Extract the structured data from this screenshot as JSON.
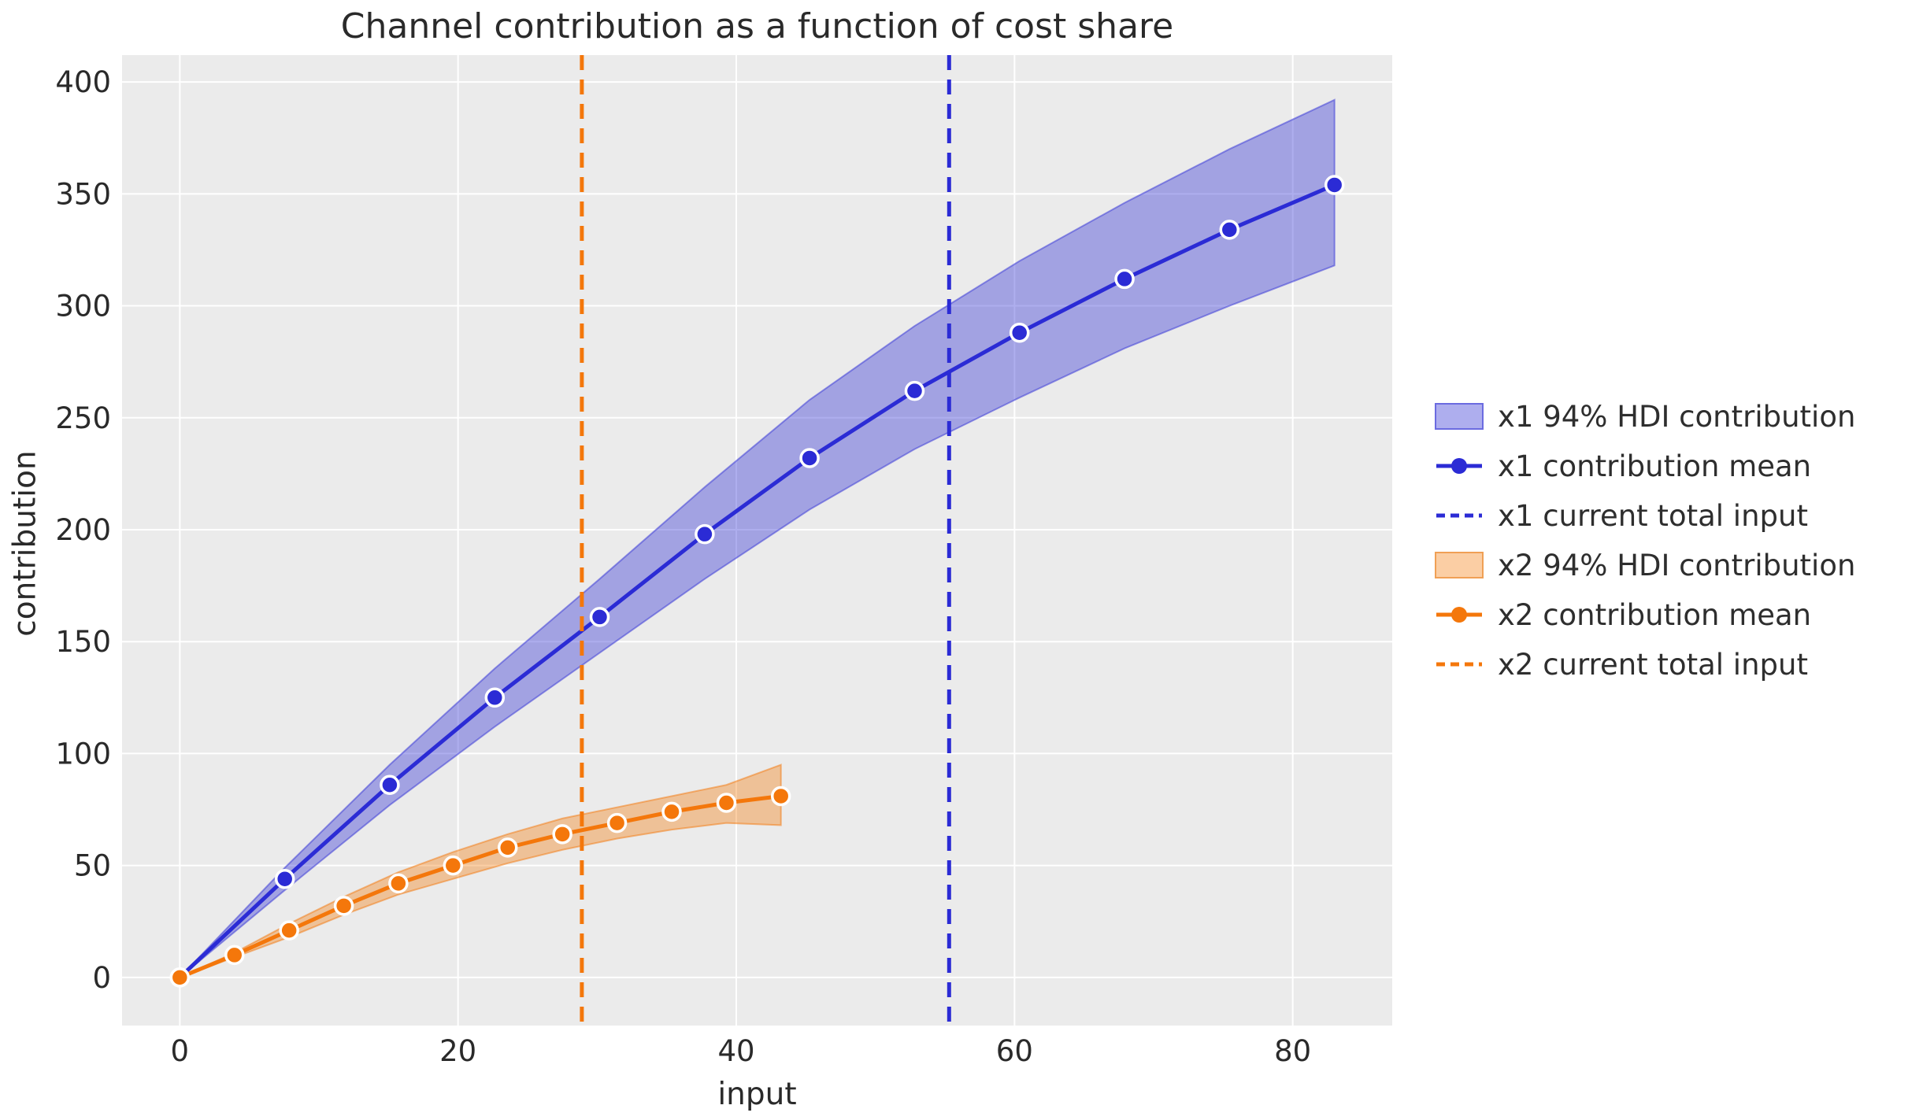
{
  "title": "Channel contribution as a function of cost share",
  "axes": {
    "xlabel": "input",
    "ylabel": "contribution"
  },
  "colors": {
    "page_bg": "#ffffff",
    "plot_bg": "#ebebeb",
    "gridline": "#ffffff",
    "text": "#2a2a2a",
    "x1_blue": "#2b2bd5",
    "x1_band_fill": "rgba(62,62,215,0.42)",
    "x1_band_edge": "rgba(62,62,215,0.55)",
    "x2_orange": "#f4770b",
    "x2_band_fill": "rgba(244,125,15,0.38)",
    "x2_band_edge": "rgba(244,119,11,0.50)",
    "marker_edge": "#ffffff"
  },
  "chart_data": {
    "type": "line",
    "title": "Channel contribution as a function of cost share",
    "xlabel": "input",
    "ylabel": "contribution",
    "xlim": [
      -4.15,
      87.15
    ],
    "ylim": [
      -21.5,
      412
    ],
    "xticks": [
      0,
      20,
      40,
      60,
      80
    ],
    "yticks": [
      0,
      50,
      100,
      150,
      200,
      250,
      300,
      350,
      400
    ],
    "grid": true,
    "legend_position": "outside-right",
    "series": [
      {
        "name": "x1 94% HDI contribution",
        "type": "band",
        "color": "#2b2bd5",
        "fill": "rgba(62,62,215,0.42)",
        "edge": "rgba(62,62,215,0.55)",
        "x": [
          0,
          7.55,
          15.09,
          22.64,
          30.18,
          37.73,
          45.27,
          52.82,
          60.36,
          67.91,
          75.45,
          83
        ],
        "low": [
          0,
          39,
          77,
          112,
          145,
          178,
          209,
          236,
          259,
          281,
          300,
          318
        ],
        "high": [
          0,
          49,
          95,
          138,
          178,
          219,
          258,
          291,
          320,
          346,
          370,
          392
        ]
      },
      {
        "name": "x1 contribution mean",
        "type": "line-markers",
        "color": "#2b2bd5",
        "x": [
          0,
          7.55,
          15.09,
          22.64,
          30.18,
          37.73,
          45.27,
          52.82,
          60.36,
          67.91,
          75.45,
          83
        ],
        "y": [
          0,
          44,
          86,
          125,
          161,
          198,
          232,
          262,
          288,
          312,
          334,
          354
        ]
      },
      {
        "name": "x1 current total input",
        "type": "vline",
        "color": "#2b2bd5",
        "x": 55.3
      },
      {
        "name": "x2 94% HDI contribution",
        "type": "band",
        "color": "#f4770b",
        "fill": "rgba(244,125,15,0.38)",
        "edge": "rgba(244,119,11,0.50)",
        "x": [
          0,
          3.93,
          7.86,
          11.79,
          15.71,
          19.64,
          23.57,
          27.5,
          31.43,
          35.36,
          39.29,
          43.21
        ],
        "low": [
          0,
          9,
          18,
          28,
          37,
          44,
          51,
          57,
          62,
          66,
          69,
          68
        ],
        "high": [
          0,
          11,
          24,
          36,
          47,
          56,
          64,
          71,
          76,
          81,
          86,
          95
        ]
      },
      {
        "name": "x2 contribution mean",
        "type": "line-markers",
        "color": "#f4770b",
        "x": [
          0,
          3.93,
          7.86,
          11.79,
          15.71,
          19.64,
          23.57,
          27.5,
          31.43,
          35.36,
          39.29,
          43.21
        ],
        "y": [
          0,
          10,
          21,
          32,
          42,
          50,
          58,
          64,
          69,
          74,
          78,
          81
        ]
      },
      {
        "name": "x2 current total input",
        "type": "vline",
        "color": "#f4770b",
        "x": 28.9
      }
    ]
  },
  "legend": {
    "items": [
      {
        "label": "x1 94% HDI contribution",
        "swatch": "patch",
        "color": "#2b2bd5",
        "fill": "rgba(62,62,215,0.42)",
        "edge": "#6b6be0"
      },
      {
        "label": "x1 contribution mean",
        "swatch": "line-marker",
        "color": "#2b2bd5"
      },
      {
        "label": "x1 current total input",
        "swatch": "dashed-line",
        "color": "#2b2bd5"
      },
      {
        "label": "x2 94% HDI contribution",
        "swatch": "patch",
        "color": "#f4770b",
        "fill": "rgba(244,125,15,0.38)",
        "edge": "#f0a055"
      },
      {
        "label": "x2 contribution mean",
        "swatch": "line-marker",
        "color": "#f4770b"
      },
      {
        "label": "x2 current total input",
        "swatch": "dashed-line",
        "color": "#f4770b"
      }
    ]
  }
}
